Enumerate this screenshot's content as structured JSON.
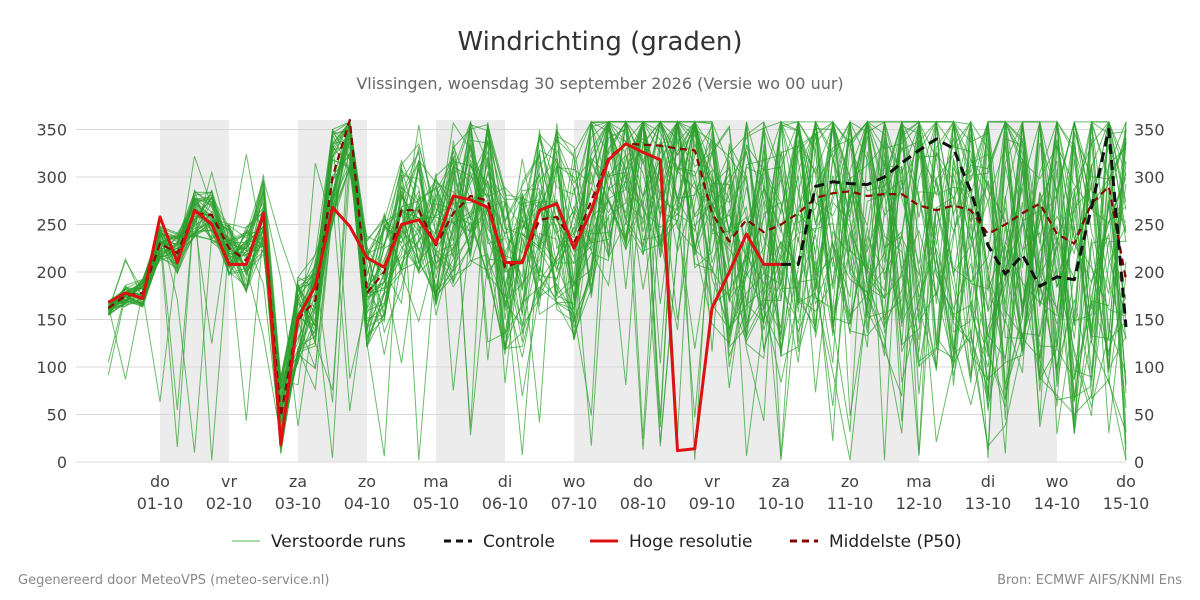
{
  "chart_data": {
    "type": "line",
    "title": "Windrichting (graden)",
    "subtitle": "Vlissingen, woensdag 30 september 2026 (Versie wo 00 uur)",
    "xlabel": "",
    "ylabel": "",
    "ylim": [
      0,
      360
    ],
    "xlim": [
      -0.75,
      14
    ],
    "yticks": [
      0,
      50,
      100,
      150,
      200,
      250,
      300,
      350
    ],
    "grid": true,
    "x_unit": "days from 01-10",
    "xticks": [
      {
        "day": "do",
        "date": "01-10"
      },
      {
        "day": "vr",
        "date": "02-10"
      },
      {
        "day": "za",
        "date": "03-10"
      },
      {
        "day": "zo",
        "date": "04-10"
      },
      {
        "day": "ma",
        "date": "05-10"
      },
      {
        "day": "di",
        "date": "06-10"
      },
      {
        "day": "wo",
        "date": "07-10"
      },
      {
        "day": "do",
        "date": "08-10"
      },
      {
        "day": "vr",
        "date": "09-10"
      },
      {
        "day": "za",
        "date": "10-10"
      },
      {
        "day": "zo",
        "date": "11-10"
      },
      {
        "day": "ma",
        "date": "12-10"
      },
      {
        "day": "di",
        "date": "13-10"
      },
      {
        "day": "wo",
        "date": "14-10"
      },
      {
        "day": "do",
        "date": "15-10"
      }
    ],
    "weekend_shading": [
      [
        0,
        1
      ],
      [
        2,
        3
      ],
      [
        4,
        5
      ],
      [
        6,
        8
      ],
      [
        8,
        9
      ],
      [
        10,
        11
      ],
      [
        12,
        13
      ]
    ],
    "legend_placement": "bottom",
    "legend": [
      {
        "name": "Verstoorde runs",
        "style": "thin",
        "color": "#2ca02c"
      },
      {
        "name": "Controle",
        "style": "dashed",
        "color": "#111111"
      },
      {
        "name": "Hoge resolutie",
        "style": "solid",
        "color": "#dd1111"
      },
      {
        "name": "Middelste (P50)",
        "style": "dashed",
        "color": "#8b0000"
      }
    ],
    "series": [
      {
        "name": "Hoge resolutie",
        "color": "#dd1111",
        "x": [
          -0.75,
          -0.5,
          -0.25,
          0,
          0.25,
          0.5,
          0.75,
          1,
          1.25,
          1.5,
          1.75,
          2,
          2.25,
          2.5,
          2.75,
          3,
          3.25,
          3.5,
          3.75,
          4,
          4.25,
          4.5,
          4.75,
          5,
          5.25,
          5.5,
          5.75,
          6,
          6.25,
          6.5,
          6.75,
          7,
          7.25,
          7.5,
          7.75,
          8,
          8.25,
          8.5,
          8.75,
          9
        ],
        "values": [
          168,
          178,
          172,
          258,
          210,
          265,
          250,
          208,
          208,
          262,
          18,
          152,
          185,
          268,
          248,
          215,
          205,
          250,
          255,
          230,
          280,
          276,
          268,
          210,
          210,
          265,
          272,
          225,
          265,
          318,
          335,
          326,
          318,
          12,
          14,
          162,
          200,
          240,
          208,
          208
        ]
      },
      {
        "name": "Controle",
        "color": "#111111",
        "x": [
          9,
          9.25,
          9.5,
          9.75,
          10,
          10.25,
          10.5,
          10.75,
          11,
          11.25,
          11.5,
          11.75,
          12,
          12.25,
          12.5,
          12.75,
          13,
          13.25,
          13.5,
          13.75,
          14
        ],
        "values": [
          208,
          208,
          290,
          295,
          293,
          292,
          300,
          315,
          328,
          340,
          330,
          285,
          228,
          198,
          218,
          185,
          195,
          192,
          268,
          350,
          142
        ]
      },
      {
        "name": "Middelste (P50)",
        "color": "#8b0000",
        "x": [
          -0.75,
          -0.5,
          -0.25,
          0,
          0.25,
          0.5,
          0.75,
          1,
          1.25,
          1.5,
          1.75,
          2,
          2.25,
          2.5,
          2.75,
          3,
          3.25,
          3.5,
          3.75,
          4,
          4.25,
          4.5,
          4.75,
          5,
          5.25,
          5.5,
          5.75,
          6,
          6.25,
          6.5,
          6.75,
          7,
          7.25,
          7.5,
          7.75,
          8,
          8.25,
          8.5,
          8.75,
          9,
          9.25,
          9.5,
          9.75,
          10,
          10.25,
          10.5,
          10.75,
          11,
          11.25,
          11.5,
          11.75,
          12,
          12.25,
          12.5,
          12.75,
          13,
          13.25,
          13.5,
          13.75,
          14
        ],
        "values": [
          162,
          175,
          178,
          230,
          220,
          262,
          260,
          225,
          212,
          258,
          48,
          150,
          170,
          300,
          360,
          178,
          200,
          265,
          265,
          228,
          262,
          280,
          275,
          205,
          212,
          255,
          258,
          230,
          275,
          320,
          335,
          334,
          333,
          330,
          328,
          262,
          232,
          255,
          242,
          250,
          262,
          278,
          283,
          285,
          280,
          282,
          282,
          270,
          265,
          270,
          265,
          240,
          250,
          262,
          272,
          240,
          230,
          272,
          290,
          192
        ]
      }
    ],
    "ensemble_members": 50
  },
  "footer": {
    "left": "Gegenereerd door MeteoVPS (meteo-service.nl)",
    "right": "Bron: ECMWF AIFS/KNMI Ens"
  }
}
